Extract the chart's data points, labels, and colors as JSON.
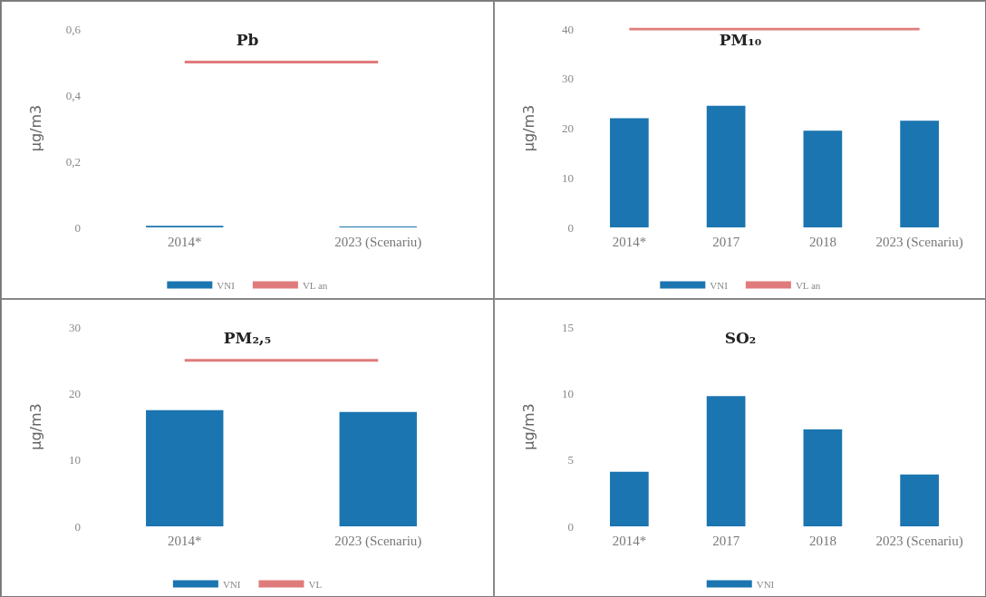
{
  "chart_data": [
    {
      "type": "bar",
      "title": "Pb",
      "ylabel": "µg/m3",
      "categories": [
        "2014*",
        "2023 (Scenariu)"
      ],
      "ylim": [
        0,
        0.6
      ],
      "yticks": [
        0,
        {
          "value": 0.2,
          "label": "0,2"
        },
        {
          "value": 0.4,
          "label": "0,4"
        },
        {
          "value": 0.6,
          "label": "0,6"
        }
      ],
      "grid": false,
      "legend": "bottom",
      "series": [
        {
          "name": "VNI",
          "color": "#1b75b0",
          "values": [
            0.005,
            0.003
          ]
        },
        {
          "name": "VL an",
          "type": "line",
          "color": "#e07b7b",
          "marker": "none",
          "values": [
            0.5,
            0.5
          ]
        }
      ]
    },
    {
      "type": "bar",
      "title": "PM₁₀",
      "ylabel": "µg/m3",
      "categories": [
        "2014*",
        "2017",
        "2018",
        "2023 (Scenariu)"
      ],
      "ylim": [
        0,
        40
      ],
      "yticks": [
        0,
        10,
        20,
        30,
        40
      ],
      "grid": false,
      "legend": "bottom",
      "series": [
        {
          "name": "VNI",
          "color": "#1b75b0",
          "values": [
            22,
            24.5,
            19.5,
            21.5
          ]
        },
        {
          "name": "VL an",
          "type": "line",
          "color": "#e07b7b",
          "marker": "none",
          "values": [
            40,
            40,
            40,
            40
          ]
        }
      ]
    },
    {
      "type": "bar",
      "title": "PM₂,₅",
      "ylabel": "µg/m3",
      "categories": [
        "2014*",
        "2023 (Scenariu)"
      ],
      "ylim": [
        0,
        30
      ],
      "yticks": [
        0,
        10,
        20,
        30
      ],
      "grid": false,
      "legend": "bottom",
      "series": [
        {
          "name": "VNI",
          "color": "#1b75b0",
          "values": [
            17.5,
            17.2
          ]
        },
        {
          "name": "VL",
          "type": "line",
          "color": "#e07b7b",
          "marker": "none",
          "values": [
            25,
            25
          ]
        }
      ]
    },
    {
      "type": "bar",
      "title": "SO₂",
      "ylabel": "µg/m3",
      "categories": [
        "2014*",
        "2017",
        "2018",
        "2023 (Scenariu)"
      ],
      "ylim": [
        0,
        15
      ],
      "yticks": [
        0,
        5,
        10,
        15
      ],
      "grid": false,
      "legend": "bottom",
      "series": [
        {
          "name": "VNI",
          "color": "#1b75b0",
          "values": [
            4.1,
            9.8,
            7.3,
            3.9
          ]
        }
      ]
    }
  ]
}
